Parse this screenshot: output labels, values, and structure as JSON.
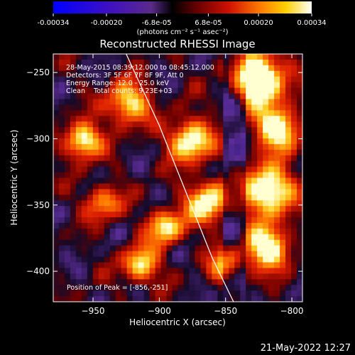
{
  "colorbar": {
    "tick_labels": [
      "-0.00034",
      "-0.00020",
      "-6.8e-05",
      "6.8e-05",
      "0.00020",
      "0.00034"
    ],
    "units_label": "(photons cm⁻² s⁻¹ asec⁻²)",
    "range": [
      -0.00034,
      0.00034
    ]
  },
  "image": {
    "title": "Reconstructed RHESSI Image",
    "info_lines": [
      "28-May-2015 08:39:12.000 to 08:45:12.000",
      "Detectors: 3F 5F 6F 7F 8F 9F, Att 0",
      "Energy Range: 12.0 - 25.0 keV",
      "Clean    Total counts: 9.23E+03"
    ],
    "peak_text": "Position of Peak = [-856,-251]",
    "timestamp": "21-May-2022 12:27"
  },
  "chart_data": {
    "type": "heatmap",
    "title": "Reconstructed RHESSI Image",
    "xlabel": "Heliocentric X (arcsec)",
    "ylabel": "Heliocentric Y (arcsec)",
    "xlim": [
      -980,
      -792
    ],
    "ylim": [
      -423,
      -236
    ],
    "x_ticks": [
      -950,
      -900,
      -850,
      -800
    ],
    "y_ticks": [
      -250,
      -300,
      -350,
      -400
    ],
    "limb_curve": [
      [
        -925,
        -236
      ],
      [
        -900,
        -290
      ],
      [
        -880,
        -340
      ],
      [
        -860,
        -390
      ],
      [
        -844,
        -423
      ]
    ],
    "peak": [
      -856,
      -251
    ]
  }
}
